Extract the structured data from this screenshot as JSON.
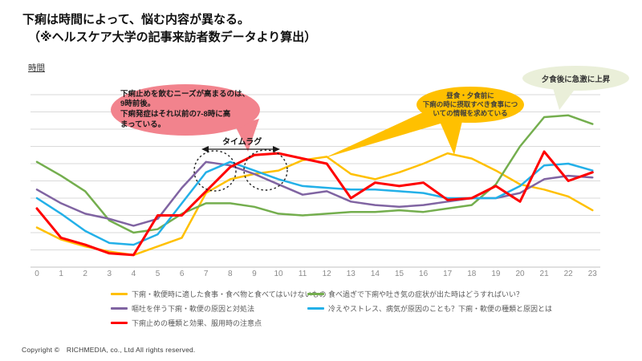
{
  "title": {
    "line1": "下痢は時間によって、悩む内容が異なる。",
    "line2": "（※ヘルスケア大学の記事来訪者数データより算出）"
  },
  "axis_corner_label": "時間",
  "chart_data": {
    "type": "line",
    "x": [
      0,
      1,
      2,
      3,
      4,
      5,
      6,
      7,
      8,
      9,
      10,
      11,
      12,
      13,
      14,
      15,
      16,
      17,
      18,
      19,
      20,
      21,
      22,
      23
    ],
    "xlabel": "時間",
    "ylabel": "",
    "ylim": [
      0,
      100
    ],
    "grid": true,
    "gridline_step": 10,
    "legend_position": "bottom",
    "series": [
      {
        "name": "下痢・軟便時に適した食事・食べ物と食べてはいけないもの",
        "color": "#FFC000",
        "values": [
          23,
          16,
          12,
          9,
          7,
          12,
          17,
          43,
          51,
          54,
          56,
          62,
          64,
          54,
          51,
          55,
          60,
          66,
          63,
          56,
          48,
          45,
          41,
          33
        ]
      },
      {
        "name": "食べ過ぎで下痢や吐き気の症状が出た時はどうすればいい？",
        "color": "#74AE4E",
        "values": [
          61,
          53,
          44,
          27,
          20,
          22,
          31,
          37,
          37,
          35,
          31,
          30,
          31,
          32,
          32,
          33,
          32,
          34,
          36,
          48,
          70,
          87,
          88,
          83
        ]
      },
      {
        "name": "嘔吐を伴う下痢・軟便の原因と対処法",
        "color": "#8064A2",
        "values": [
          45,
          37,
          31,
          28,
          24,
          28,
          46,
          61,
          59,
          54,
          48,
          42,
          44,
          38,
          36,
          35,
          36,
          38,
          40,
          40,
          43,
          51,
          53,
          52
        ]
      },
      {
        "name": "冷えやストレス、病気が原因のことも？下痢・軟便の種類と原因とは",
        "color": "#23B0E8",
        "values": [
          40,
          31,
          21,
          14,
          13,
          19,
          37,
          55,
          61,
          56,
          51,
          47,
          46,
          45,
          45,
          44,
          43,
          40,
          40,
          40,
          47,
          59,
          60,
          56
        ]
      },
      {
        "name": "下痢止めの種類と効果、服用時の注意点",
        "color": "#FF0000",
        "values": [
          34,
          17,
          13,
          8,
          7,
          30,
          30,
          44,
          58,
          65,
          66,
          63,
          60,
          40,
          49,
          47,
          49,
          39,
          40,
          47,
          38,
          67,
          50,
          55
        ]
      }
    ]
  },
  "annotations": {
    "pink_callout": {
      "color": "#F2838D",
      "lines": [
        "下痢止めを飲むニーズが高まるのは、",
        "9時前後。",
        "下痢発症はそれ以前の7-8時に高",
        "まっている。"
      ]
    },
    "timelag_label": "タイムラグ",
    "yellow_callout": {
      "color": "#FFC000",
      "lines": [
        "昼食・夕食前に",
        "下痢の時に摂取すべき食事につ",
        "いての情報を求めている"
      ]
    },
    "green_callout": {
      "color": "#EAEFD9",
      "text": "夕食後に急激に上昇"
    }
  },
  "footer": {
    "copyright": "Copyright ©　RICHMEDIA, co., Ltd  All rights reserved."
  }
}
